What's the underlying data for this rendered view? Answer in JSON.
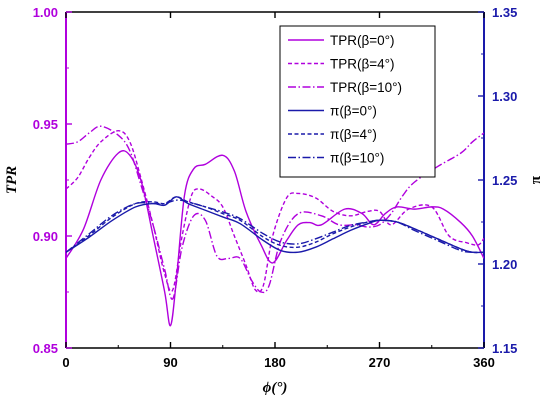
{
  "chart_data": {
    "type": "line",
    "x_axis": {
      "label": "ϕ(°)",
      "ticks": [
        "0",
        "90",
        "180",
        "270",
        "360"
      ],
      "tick_values": [
        0,
        90,
        180,
        270,
        360
      ],
      "range": [
        0,
        360
      ]
    },
    "y_left": {
      "label": "TPR",
      "ticks": [
        "0.85",
        "0.90",
        "0.95",
        "1.00"
      ],
      "tick_values": [
        0.85,
        0.9,
        0.95,
        1.0
      ],
      "range": [
        0.85,
        1.0
      ],
      "color": "#b000dd"
    },
    "y_right": {
      "label": "π",
      "ticks": [
        "1.15",
        "1.20",
        "1.25",
        "1.30",
        "1.35"
      ],
      "tick_values": [
        1.15,
        1.2,
        1.25,
        1.3,
        1.35
      ],
      "range": [
        1.15,
        1.35
      ],
      "color": "#1a1aaa"
    },
    "grid": false,
    "legend_position": "top-right",
    "series": [
      {
        "name": "TPR(β=0°)",
        "axis": "left",
        "color": "#b000dd",
        "dash": "solid",
        "x": [
          0,
          15,
          30,
          45,
          55,
          65,
          75,
          85,
          90,
          95,
          102,
          110,
          120,
          135,
          145,
          155,
          168,
          178,
          190,
          200,
          210,
          220,
          240,
          255,
          265,
          275,
          285,
          300,
          315,
          325,
          340,
          350,
          360
        ],
        "y": [
          0.89,
          0.903,
          0.925,
          0.937,
          0.936,
          0.924,
          0.9,
          0.875,
          0.86,
          0.88,
          0.918,
          0.93,
          0.932,
          0.936,
          0.929,
          0.911,
          0.896,
          0.888,
          0.898,
          0.905,
          0.906,
          0.905,
          0.912,
          0.91,
          0.905,
          0.91,
          0.913,
          0.912,
          0.913,
          0.912,
          0.906,
          0.9,
          0.89
        ]
      },
      {
        "name": "TPR(β=4°)",
        "axis": "left",
        "color": "#b000dd",
        "dash": "dash",
        "x": [
          0,
          10,
          20,
          30,
          45,
          55,
          65,
          75,
          85,
          92,
          100,
          108,
          115,
          125,
          135,
          145,
          155,
          163,
          170,
          178,
          190,
          200,
          215,
          230,
          245,
          260,
          270,
          280,
          295,
          315,
          330,
          345,
          355,
          360
        ],
        "y": [
          0.921,
          0.926,
          0.935,
          0.942,
          0.947,
          0.942,
          0.925,
          0.905,
          0.883,
          0.876,
          0.9,
          0.918,
          0.921,
          0.918,
          0.913,
          0.9,
          0.887,
          0.876,
          0.878,
          0.9,
          0.917,
          0.919,
          0.917,
          0.911,
          0.909,
          0.911,
          0.911,
          0.905,
          0.912,
          0.913,
          0.9,
          0.897,
          0.896,
          0.899
        ]
      },
      {
        "name": "TPR(β=10°)",
        "axis": "left",
        "color": "#b000dd",
        "dash": "dashdot",
        "x": [
          0,
          10,
          20,
          30,
          45,
          55,
          65,
          75,
          85,
          92,
          100,
          110,
          120,
          130,
          140,
          150,
          160,
          168,
          175,
          185,
          200,
          220,
          235,
          250,
          260,
          270,
          280,
          290,
          300,
          320,
          340,
          350,
          360
        ],
        "y": [
          0.941,
          0.942,
          0.946,
          0.949,
          0.945,
          0.938,
          0.922,
          0.905,
          0.885,
          0.872,
          0.895,
          0.909,
          0.907,
          0.891,
          0.89,
          0.89,
          0.88,
          0.875,
          0.878,
          0.898,
          0.91,
          0.909,
          0.905,
          0.905,
          0.904,
          0.905,
          0.91,
          0.918,
          0.924,
          0.931,
          0.937,
          0.942,
          0.946
        ]
      },
      {
        "name": "π(β=0°)",
        "axis": "right",
        "color": "#1a1aaa",
        "dash": "solid",
        "x": [
          0,
          20,
          40,
          60,
          75,
          85,
          95,
          105,
          120,
          135,
          150,
          170,
          185,
          200,
          215,
          230,
          245,
          260,
          270,
          285,
          300,
          320,
          340,
          350,
          360
        ],
        "y": [
          1.207,
          1.216,
          1.226,
          1.234,
          1.236,
          1.235,
          1.24,
          1.236,
          1.232,
          1.228,
          1.224,
          1.214,
          1.208,
          1.207,
          1.21,
          1.215,
          1.22,
          1.224,
          1.226,
          1.225,
          1.221,
          1.215,
          1.209,
          1.207,
          1.207
        ]
      },
      {
        "name": "π(β=4°)",
        "axis": "right",
        "color": "#1a1aaa",
        "dash": "dash",
        "x": [
          0,
          20,
          40,
          60,
          75,
          85,
          95,
          105,
          120,
          135,
          150,
          170,
          185,
          200,
          215,
          230,
          245,
          260,
          270,
          285,
          300,
          320,
          340,
          350,
          360
        ],
        "y": [
          1.207,
          1.217,
          1.228,
          1.236,
          1.237,
          1.236,
          1.24,
          1.237,
          1.234,
          1.23,
          1.226,
          1.216,
          1.211,
          1.21,
          1.213,
          1.218,
          1.222,
          1.225,
          1.226,
          1.225,
          1.221,
          1.215,
          1.209,
          1.207,
          1.207
        ]
      },
      {
        "name": "π(β=10°)",
        "axis": "right",
        "color": "#1a1aaa",
        "dash": "dashdot",
        "x": [
          0,
          20,
          40,
          60,
          75,
          85,
          95,
          105,
          120,
          135,
          150,
          170,
          185,
          200,
          215,
          230,
          245,
          260,
          270,
          285,
          300,
          320,
          340,
          350,
          360
        ],
        "y": [
          1.207,
          1.218,
          1.229,
          1.236,
          1.236,
          1.236,
          1.238,
          1.237,
          1.234,
          1.231,
          1.227,
          1.218,
          1.213,
          1.212,
          1.215,
          1.219,
          1.223,
          1.225,
          1.226,
          1.225,
          1.22,
          1.214,
          1.208,
          1.207,
          1.207
        ]
      }
    ]
  }
}
